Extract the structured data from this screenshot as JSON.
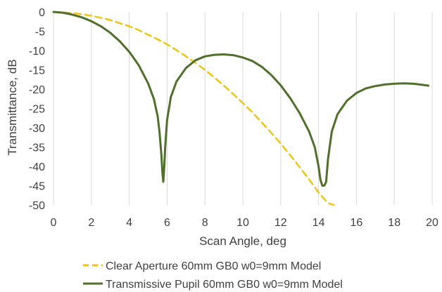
{
  "chart_data": {
    "type": "line",
    "title": "",
    "xlabel": "Scan Angle, deg",
    "ylabel": "Transmittance, dB",
    "xlim": [
      0,
      20
    ],
    "ylim": [
      -50,
      0
    ],
    "x_ticks": [
      0,
      2,
      4,
      6,
      8,
      10,
      12,
      14,
      16,
      18,
      20
    ],
    "y_ticks": [
      0,
      -5,
      -10,
      -15,
      -20,
      -25,
      -30,
      -35,
      -40,
      -45,
      -50
    ],
    "grid": "vertical",
    "legend_position": "bottom",
    "series": [
      {
        "name": "Clear Aperture 60mm GB0 w0=9mm Model",
        "color": "#f2c314",
        "style": "dashed",
        "x": [
          0,
          0.5,
          1,
          1.5,
          2,
          2.5,
          3,
          3.5,
          4,
          4.5,
          5,
          5.5,
          6,
          6.5,
          7,
          7.5,
          8,
          8.5,
          9,
          9.5,
          10,
          10.5,
          11,
          11.5,
          12,
          12.5,
          13,
          13.5,
          14,
          14.5,
          14.8
        ],
        "y": [
          0,
          -0.1,
          -0.3,
          -0.6,
          -1.0,
          -1.5,
          -2.1,
          -2.9,
          -3.7,
          -4.7,
          -5.9,
          -7.1,
          -8.4,
          -9.9,
          -11.5,
          -13.2,
          -15.0,
          -17.0,
          -19.1,
          -21.3,
          -23.6,
          -26.0,
          -28.6,
          -31.3,
          -34.1,
          -37.1,
          -40.2,
          -43.4,
          -46.8,
          -49.5,
          -50
        ]
      },
      {
        "name": "Transmissive Pupil 60mm GB0 w0=9mm Model",
        "color": "#4f6f2a",
        "style": "solid",
        "x": [
          0,
          0.5,
          1,
          1.5,
          2,
          2.5,
          3,
          3.5,
          4,
          4.5,
          5,
          5.3,
          5.5,
          5.6,
          5.7,
          5.75,
          5.8,
          5.85,
          5.9,
          6.0,
          6.2,
          6.5,
          7,
          7.5,
          8,
          8.5,
          9,
          9.5,
          10,
          10.5,
          11,
          11.5,
          12,
          12.5,
          13,
          13.5,
          13.8,
          14.0,
          14.1,
          14.2,
          14.3,
          14.4,
          14.5,
          14.7,
          15,
          15.5,
          16,
          16.5,
          17,
          17.5,
          18,
          18.5,
          19,
          19.5,
          19.8
        ],
        "y": [
          0,
          -0.2,
          -0.7,
          -1.4,
          -2.4,
          -3.7,
          -5.4,
          -7.6,
          -10.3,
          -13.8,
          -18.5,
          -22.5,
          -27,
          -31,
          -37,
          -41.5,
          -44,
          -40,
          -35,
          -28,
          -22,
          -18,
          -14.5,
          -12.5,
          -11.5,
          -11.1,
          -11,
          -11.2,
          -11.8,
          -12.7,
          -14.2,
          -16.3,
          -19,
          -22.3,
          -26.2,
          -31,
          -35,
          -40,
          -43.5,
          -45,
          -45,
          -44,
          -38,
          -31,
          -26.5,
          -23,
          -21,
          -19.8,
          -19.2,
          -18.8,
          -18.6,
          -18.5,
          -18.6,
          -18.9,
          -19.1
        ]
      }
    ]
  }
}
